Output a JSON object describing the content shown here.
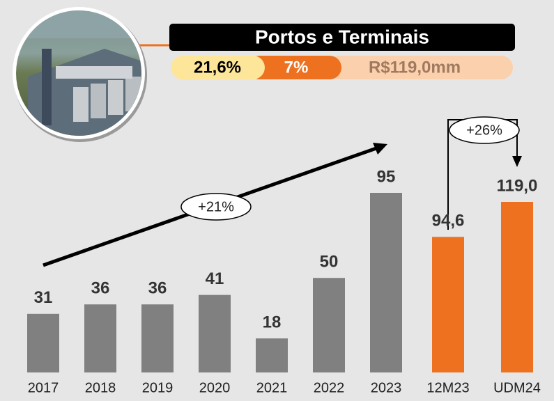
{
  "header": {
    "title": "Portos e Terminais",
    "items": [
      "21,6%",
      "7%",
      "R$119,0mm"
    ]
  },
  "chart_data": [
    {
      "type": "bar",
      "categories": [
        "2017",
        "2018",
        "2019",
        "2020",
        "2021",
        "2022",
        "2023"
      ],
      "values": [
        31,
        36,
        36,
        41,
        18,
        50,
        95
      ],
      "value_labels": [
        "31",
        "36",
        "36",
        "41",
        "18",
        "50",
        "95"
      ],
      "color": "#808080",
      "annotation": "+21%"
    },
    {
      "type": "bar",
      "categories": [
        "12M23",
        "UDM24"
      ],
      "values": [
        94.6,
        119.0
      ],
      "value_labels": [
        "94,6",
        "119,0"
      ],
      "color": "#ee7120",
      "annotation": "+26%"
    }
  ]
}
